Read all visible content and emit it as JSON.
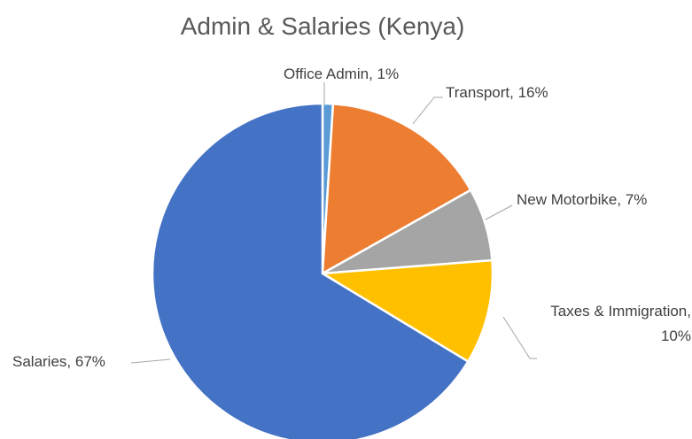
{
  "chart_data": {
    "type": "pie",
    "title": "Admin & Salaries (Kenya)",
    "categories": [
      "Office Admin",
      "Transport",
      "New Motorbike",
      "Taxes & Immigration",
      "Salaries"
    ],
    "values": [
      1,
      16,
      7,
      10,
      67
    ],
    "value_labels": [
      "Office Admin, 1%",
      "Transport, 16%",
      "New Motorbike, 7%",
      "Taxes & Immigration, 10%",
      "Salaries, 67%"
    ],
    "colors": [
      "#5b9bd5",
      "#ed7d31",
      "#a5a5a5",
      "#ffc000",
      "#4472c4"
    ]
  }
}
